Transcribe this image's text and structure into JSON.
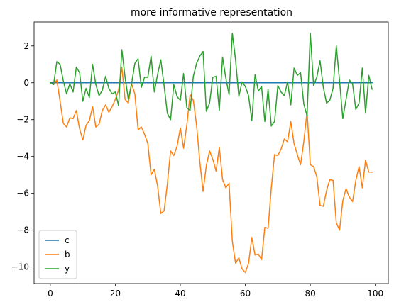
{
  "chart_data": {
    "type": "line",
    "title": "more informative representation",
    "xlabel": "",
    "ylabel": "",
    "xlim": [
      -5,
      104
    ],
    "ylim": [
      -10.9,
      3.3
    ],
    "xticks": [
      0,
      20,
      40,
      60,
      80,
      100
    ],
    "yticks": [
      2,
      0,
      -2,
      -4,
      -6,
      -8,
      -10
    ],
    "grid": false,
    "legend_position": "lower-left",
    "x": [
      0,
      1,
      2,
      3,
      4,
      5,
      6,
      7,
      8,
      9,
      10,
      11,
      12,
      13,
      14,
      15,
      16,
      17,
      18,
      19,
      20,
      21,
      22,
      23,
      24,
      25,
      26,
      27,
      28,
      29,
      30,
      31,
      32,
      33,
      34,
      35,
      36,
      37,
      38,
      39,
      40,
      41,
      42,
      43,
      44,
      45,
      46,
      47,
      48,
      49,
      50,
      51,
      52,
      53,
      54,
      55,
      56,
      57,
      58,
      59,
      60,
      61,
      62,
      63,
      64,
      65,
      66,
      67,
      68,
      69,
      70,
      71,
      72,
      73,
      74,
      75,
      76,
      77,
      78,
      79,
      80,
      81,
      82,
      83,
      84,
      85,
      86,
      87,
      88,
      89,
      90,
      91,
      92,
      93,
      94,
      95,
      96,
      97,
      98,
      99
    ],
    "series": [
      {
        "name": "c",
        "color": "#1f77b4",
        "values": [
          0,
          0,
          0,
          0,
          0,
          0,
          0,
          0,
          0,
          0,
          0,
          0,
          0,
          0,
          0,
          0,
          0,
          0,
          0,
          0,
          0,
          0,
          0,
          0,
          0,
          0,
          0,
          0,
          0,
          0,
          0,
          0,
          0,
          0,
          0,
          0,
          0,
          0,
          0,
          0,
          0,
          0,
          0,
          0,
          0,
          0,
          0,
          0,
          0,
          0,
          0,
          0,
          0,
          0,
          0,
          0,
          0,
          0,
          0,
          0,
          0,
          0,
          0,
          0,
          0,
          0,
          0,
          0,
          0,
          0,
          0,
          0,
          0,
          0,
          0,
          0,
          0,
          0,
          0,
          0,
          0,
          0,
          0,
          0,
          0,
          0,
          0,
          0,
          0,
          0,
          0,
          0,
          0,
          0,
          0,
          0,
          0,
          0,
          0,
          0
        ]
      },
      {
        "name": "b",
        "color": "#ff7f0e",
        "values": [
          0,
          -0.1,
          0.15,
          -1.0,
          -2.2,
          -2.4,
          -1.9,
          -1.95,
          -1.5,
          -2.5,
          -3.1,
          -2.3,
          -2.05,
          -1.3,
          -2.4,
          -2.25,
          -1.5,
          -1.2,
          -1.6,
          -1.3,
          -0.9,
          -0.4,
          0.85,
          -0.9,
          -1.1,
          -0.05,
          -0.6,
          -2.55,
          -2.4,
          -2.8,
          -3.3,
          -5.0,
          -4.7,
          -5.6,
          -7.1,
          -6.95,
          -5.5,
          -3.7,
          -3.95,
          -3.45,
          -2.45,
          -3.55,
          -2.3,
          -0.65,
          -0.95,
          -2.3,
          -4.3,
          -5.9,
          -4.5,
          -3.7,
          -4.15,
          -4.8,
          -3.5,
          -5.25,
          -5.7,
          -5.45,
          -8.6,
          -9.8,
          -9.5,
          -10.1,
          -10.3,
          -9.8,
          -8.4,
          -9.35,
          -9.3,
          -9.6,
          -7.85,
          -7.9,
          -5.7,
          -3.9,
          -3.95,
          -3.6,
          -3.05,
          -3.2,
          -2.1,
          -3.3,
          -3.9,
          -4.45,
          -3.2,
          -1.55,
          -4.45,
          -4.55,
          -5.1,
          -6.65,
          -6.7,
          -5.85,
          -5.25,
          -5.3,
          -7.6,
          -8.0,
          -6.4,
          -5.75,
          -6.2,
          -6.45,
          -5.3,
          -4.55,
          -5.7,
          -4.2,
          -4.85,
          -4.85
        ]
      },
      {
        "name": "y",
        "color": "#2ca02c",
        "values": [
          0,
          -0.1,
          1.15,
          1.0,
          0.1,
          -0.6,
          -0.05,
          -0.5,
          0.85,
          0.55,
          -1.0,
          -0.3,
          -0.8,
          1.0,
          -0.1,
          -0.7,
          -0.4,
          0.35,
          -0.3,
          -0.6,
          -0.5,
          -1.25,
          1.8,
          0.3,
          -0.9,
          -0.05,
          1.05,
          1.3,
          -0.25,
          0.3,
          0.3,
          1.45,
          -0.5,
          0.45,
          1.25,
          -0.15,
          -1.65,
          -2.0,
          -0.1,
          -0.75,
          -0.95,
          0.5,
          -1.35,
          -1.5,
          0.35,
          1.05,
          1.45,
          1.7,
          -1.55,
          -1.1,
          0.3,
          0.35,
          -1.5,
          1.4,
          0.25,
          -0.65,
          2.7,
          1.25,
          -0.75,
          0.05,
          -0.2,
          -0.7,
          -2.05,
          0.45,
          -0.45,
          -0.2,
          -2.1,
          -0.35,
          -2.35,
          -2.1,
          -0.15,
          -0.5,
          -0.7,
          0.05,
          -1.2,
          0.8,
          0.4,
          0.55,
          -1.15,
          -1.8,
          2.7,
          -0.15,
          0.3,
          1.2,
          -0.25,
          -1.1,
          -0.95,
          -0.3,
          2.0,
          0.1,
          -1.95,
          -0.9,
          0.15,
          -0.05,
          -1.45,
          -1.1,
          0.8,
          -1.65,
          0.4,
          -0.35
        ]
      }
    ]
  }
}
